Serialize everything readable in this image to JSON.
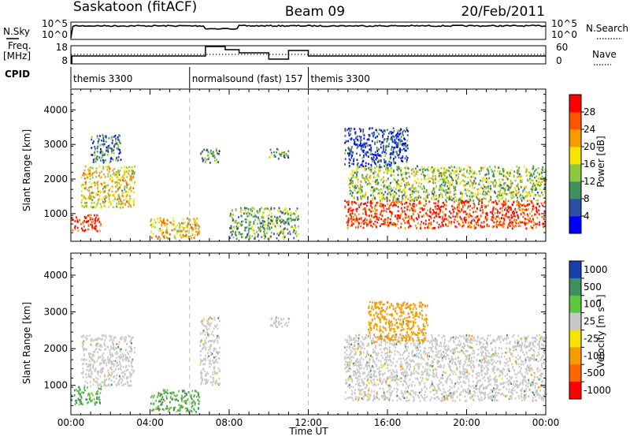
{
  "header": {
    "station": "Saskatoon (fitACF)",
    "beam": "Beam 09",
    "date": "20/Feb/2011"
  },
  "strips": {
    "nsky_label": "N.Sky",
    "nsky_top_tick": "10^5",
    "nsky_bottom_tick": "10^0",
    "nsearch_label": "N.Search",
    "nsearch_top_tick": "10^5",
    "nsearch_bottom_tick": "10^0",
    "freq_label": "Freq.",
    "freq_unit": "[MHz]",
    "freq_top_tick": "18",
    "freq_bottom_tick": "8",
    "nave_label": "Nave",
    "nave_top_tick": "60",
    "nave_bottom_tick": "0",
    "cpid_label": "CPID"
  },
  "cpid_segments": [
    {
      "label": "themis 3300",
      "start_hour": 0
    },
    {
      "label": "normalsound (fast) 157",
      "start_hour": 6
    },
    {
      "label": "themis 3300",
      "start_hour": 12
    }
  ],
  "axes": {
    "xlabel": "Time UT",
    "x_ticks": [
      "00:00",
      "04:00",
      "08:00",
      "12:00",
      "16:00",
      "20:00",
      "00:00"
    ],
    "ylabel": "Slant Range [km]",
    "y_ticks": [
      "1000",
      "2000",
      "3000",
      "4000"
    ]
  },
  "power_colorbar": {
    "label": "Power [dB]",
    "ticks": [
      "4",
      "8",
      "12",
      "16",
      "20",
      "24",
      "28"
    ],
    "colors": [
      "#0000ff",
      "#2e4ea8",
      "#3f8f5e",
      "#8dc63f",
      "#f5e400",
      "#f59c00",
      "#ff5500",
      "#ff0000"
    ]
  },
  "velocity_colorbar": {
    "label": "Velocity [m s⁻¹]",
    "ticks": [
      "1000",
      "500",
      "100",
      "25",
      "-25",
      "-100",
      "-500",
      "-1000"
    ],
    "colors": [
      "#1a3fa8",
      "#3f8f5e",
      "#5cc63f",
      "#c8c8c8",
      "#f5e400",
      "#f59c00",
      "#ff6600",
      "#ff0000"
    ]
  },
  "chart_data": {
    "type": "heatmap",
    "title": "Saskatoon (fitACF)",
    "subtitle": "Beam 09",
    "xlabel": "Time UT",
    "ylabel": "Slant Range [km]",
    "xlim_hours": [
      0,
      24
    ],
    "ylim_km": [
      200,
      4600
    ],
    "panels": [
      {
        "quantity": "Power",
        "unit": "dB",
        "colorbar_range": [
          0,
          32
        ],
        "regions": [
          {
            "t0": 0,
            "t1": 1.5,
            "r0": 500,
            "r1": 1000,
            "value": 28
          },
          {
            "t0": 0.5,
            "t1": 3.2,
            "r0": 1200,
            "r1": 2400,
            "value": 18
          },
          {
            "t0": 1,
            "t1": 2.5,
            "r0": 2500,
            "r1": 3300,
            "value": 8
          },
          {
            "t0": 4,
            "t1": 6.5,
            "r0": 300,
            "r1": 900,
            "value": 20
          },
          {
            "t0": 6.5,
            "t1": 7.5,
            "r0": 2500,
            "r1": 2900,
            "value": 10
          },
          {
            "t0": 8,
            "t1": 11.5,
            "r0": 300,
            "r1": 1200,
            "value": 12
          },
          {
            "t0": 10,
            "t1": 11,
            "r0": 2600,
            "r1": 2900,
            "value": 10
          },
          {
            "t0": 13.8,
            "t1": 24,
            "r0": 600,
            "r1": 1400,
            "value": 28
          },
          {
            "t0": 14,
            "t1": 24,
            "r0": 1400,
            "r1": 2400,
            "value": 14
          },
          {
            "t0": 13.8,
            "t1": 17,
            "r0": 2400,
            "r1": 3500,
            "value": 6
          }
        ]
      },
      {
        "quantity": "Velocity",
        "unit": "m s^-1",
        "colorbar_range": [
          -1000,
          1000
        ],
        "regions": [
          {
            "t0": 0,
            "t1": 1.5,
            "r0": 500,
            "r1": 1000,
            "value": 100
          },
          {
            "t0": 0.5,
            "t1": 3.2,
            "r0": 1000,
            "r1": 2400,
            "value": 0
          },
          {
            "t0": 4,
            "t1": 6.5,
            "r0": 300,
            "r1": 900,
            "value": 100
          },
          {
            "t0": 6.5,
            "t1": 7.5,
            "r0": 1000,
            "r1": 2900,
            "value": 0
          },
          {
            "t0": 10,
            "t1": 11,
            "r0": 2600,
            "r1": 2900,
            "value": 0
          },
          {
            "t0": 13.8,
            "t1": 24,
            "r0": 600,
            "r1": 2400,
            "value": 0
          },
          {
            "t0": 15,
            "t1": 18,
            "r0": 2200,
            "r1": 3300,
            "value": -300
          }
        ]
      }
    ]
  }
}
